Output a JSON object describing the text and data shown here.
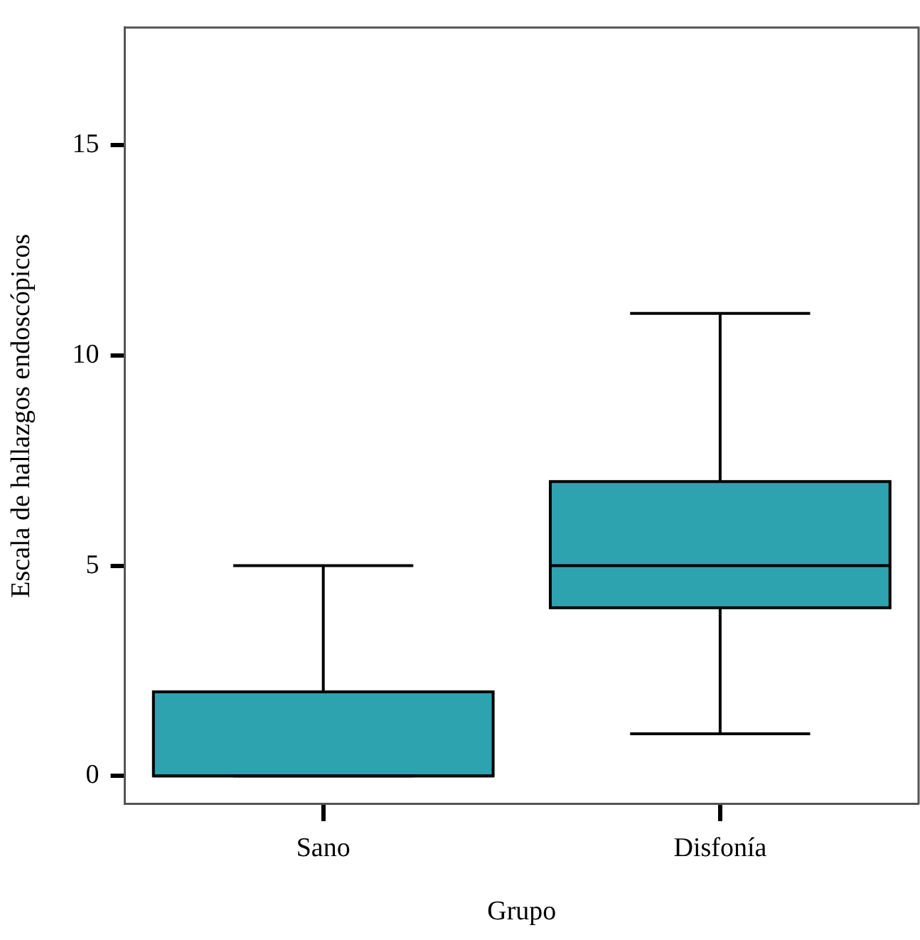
{
  "chart_data": {
    "type": "box",
    "xlabel": "Grupo",
    "ylabel": "Escala de hallazgos endoscópicos",
    "categories": [
      "Sano",
      "Disfonía"
    ],
    "color": "#2ea3b0",
    "boxes": [
      {
        "low": 0,
        "q1": 0,
        "median": 0,
        "q3": 2,
        "high": 5
      },
      {
        "low": 1,
        "q1": 4,
        "median": 5,
        "q3": 7,
        "high": 11
      }
    ],
    "ylim": [
      -0.67,
      17.8
    ],
    "yticks": [
      0,
      5,
      10,
      15
    ],
    "grid": false,
    "legend": false
  }
}
